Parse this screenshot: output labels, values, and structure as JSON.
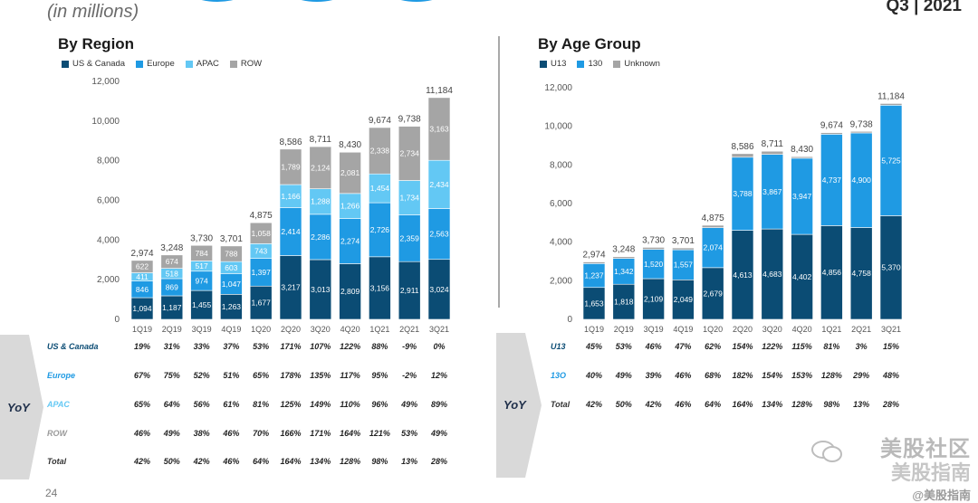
{
  "header": {
    "subtitle": "(in millions)",
    "quarter": "Q3 | 2021"
  },
  "colors": {
    "navy": "#0b4c74",
    "blue": "#1f9ae3",
    "lightblue": "#63c8f4",
    "gray": "#a5a5a5",
    "yoy_bg": "#d9d9d9"
  },
  "chart_data": [
    {
      "type": "bar",
      "stacked": true,
      "title": "By Region",
      "categories": [
        "1Q19",
        "2Q19",
        "3Q19",
        "4Q19",
        "1Q20",
        "2Q20",
        "3Q20",
        "4Q20",
        "1Q21",
        "2Q21",
        "3Q21"
      ],
      "series": [
        {
          "name": "US & Canada",
          "color": "#0b4c74",
          "values": [
            1094,
            1187,
            1455,
            1263,
            1677,
            3217,
            3013,
            2809,
            3156,
            2911,
            3024
          ]
        },
        {
          "name": "Europe",
          "color": "#1f9ae3",
          "values": [
            846,
            869,
            974,
            1047,
            1397,
            2414,
            2286,
            2274,
            2726,
            2359,
            2563
          ]
        },
        {
          "name": "APAC",
          "color": "#63c8f4",
          "values": [
            411,
            518,
            517,
            603,
            743,
            1166,
            1288,
            1266,
            1454,
            1734,
            2434
          ]
        },
        {
          "name": "ROW",
          "color": "#a5a5a5",
          "values": [
            622,
            674,
            784,
            788,
            1058,
            1789,
            2124,
            2081,
            2338,
            2734,
            3163
          ]
        }
      ],
      "totals": [
        2974,
        3248,
        3730,
        3701,
        4875,
        8586,
        8711,
        8430,
        9674,
        9738,
        11184
      ],
      "ylim": [
        0,
        12000
      ],
      "yticks": [
        0,
        2000,
        4000,
        6000,
        8000,
        10000,
        12000
      ],
      "legend": "top-left",
      "yoy": {
        "label": "YoY",
        "rows": [
          {
            "name": "US & Canada",
            "color": "#0b4c74",
            "values": [
              "19%",
              "31%",
              "33%",
              "37%",
              "53%",
              "171%",
              "107%",
              "122%",
              "88%",
              "-9%",
              "0%"
            ]
          },
          {
            "name": "Europe",
            "color": "#1f9ae3",
            "values": [
              "67%",
              "75%",
              "52%",
              "51%",
              "65%",
              "178%",
              "135%",
              "117%",
              "95%",
              "-2%",
              "12%"
            ]
          },
          {
            "name": "APAC",
            "color": "#63c8f4",
            "values": [
              "65%",
              "64%",
              "56%",
              "61%",
              "81%",
              "125%",
              "149%",
              "110%",
              "96%",
              "49%",
              "89%"
            ]
          },
          {
            "name": "ROW",
            "color": "#9a9a9a",
            "values": [
              "46%",
              "49%",
              "38%",
              "46%",
              "70%",
              "166%",
              "171%",
              "164%",
              "121%",
              "53%",
              "49%"
            ]
          },
          {
            "name": "Total",
            "color": "#333333",
            "values": [
              "42%",
              "50%",
              "42%",
              "46%",
              "64%",
              "164%",
              "134%",
              "128%",
              "98%",
              "13%",
              "28%"
            ]
          }
        ]
      }
    },
    {
      "type": "bar",
      "stacked": true,
      "title": "By Age Group",
      "categories": [
        "1Q19",
        "2Q19",
        "3Q19",
        "4Q19",
        "1Q20",
        "2Q20",
        "3Q20",
        "4Q20",
        "1Q21",
        "2Q21",
        "3Q21"
      ],
      "series": [
        {
          "name": "U13",
          "color": "#0b4c74",
          "values": [
            1653,
            1818,
            2109,
            2049,
            2679,
            4613,
            4683,
            4402,
            4856,
            4758,
            5370
          ]
        },
        {
          "name": "13O",
          "color": "#1f9ae3",
          "values": [
            1237,
            1342,
            1520,
            1557,
            2074,
            3788,
            3867,
            3947,
            4737,
            4900,
            5725
          ]
        },
        {
          "name": "Unknown",
          "color": "#a5a5a5",
          "values": [
            84,
            88,
            101,
            95,
            122,
            185,
            161,
            81,
            81,
            80,
            89
          ]
        }
      ],
      "legend_labels": [
        "U13",
        "130",
        "Unknown"
      ],
      "totals": [
        2974,
        3248,
        3730,
        3701,
        4875,
        8586,
        8711,
        8430,
        9674,
        9738,
        11184
      ],
      "ylim": [
        0,
        12000
      ],
      "yticks": [
        0,
        2000,
        4000,
        6000,
        8000,
        10000,
        12000
      ],
      "legend": "top-left",
      "yoy": {
        "label": "YoY",
        "rows": [
          {
            "name": "U13",
            "color": "#0b4c74",
            "values": [
              "45%",
              "53%",
              "46%",
              "47%",
              "62%",
              "154%",
              "122%",
              "115%",
              "81%",
              "3%",
              "15%"
            ]
          },
          {
            "name": "13O",
            "color": "#1f9ae3",
            "values": [
              "40%",
              "49%",
              "39%",
              "46%",
              "68%",
              "182%",
              "154%",
              "153%",
              "128%",
              "29%",
              "48%"
            ]
          },
          {
            "name": "Total",
            "color": "#333333",
            "values": [
              "42%",
              "50%",
              "42%",
              "46%",
              "64%",
              "164%",
              "134%",
              "128%",
              "98%",
              "13%",
              "28%"
            ]
          }
        ]
      }
    }
  ],
  "page_number": "24",
  "watermark": {
    "line1": "美股社区",
    "line2": "美股指南",
    "line3": "@美股指南"
  }
}
